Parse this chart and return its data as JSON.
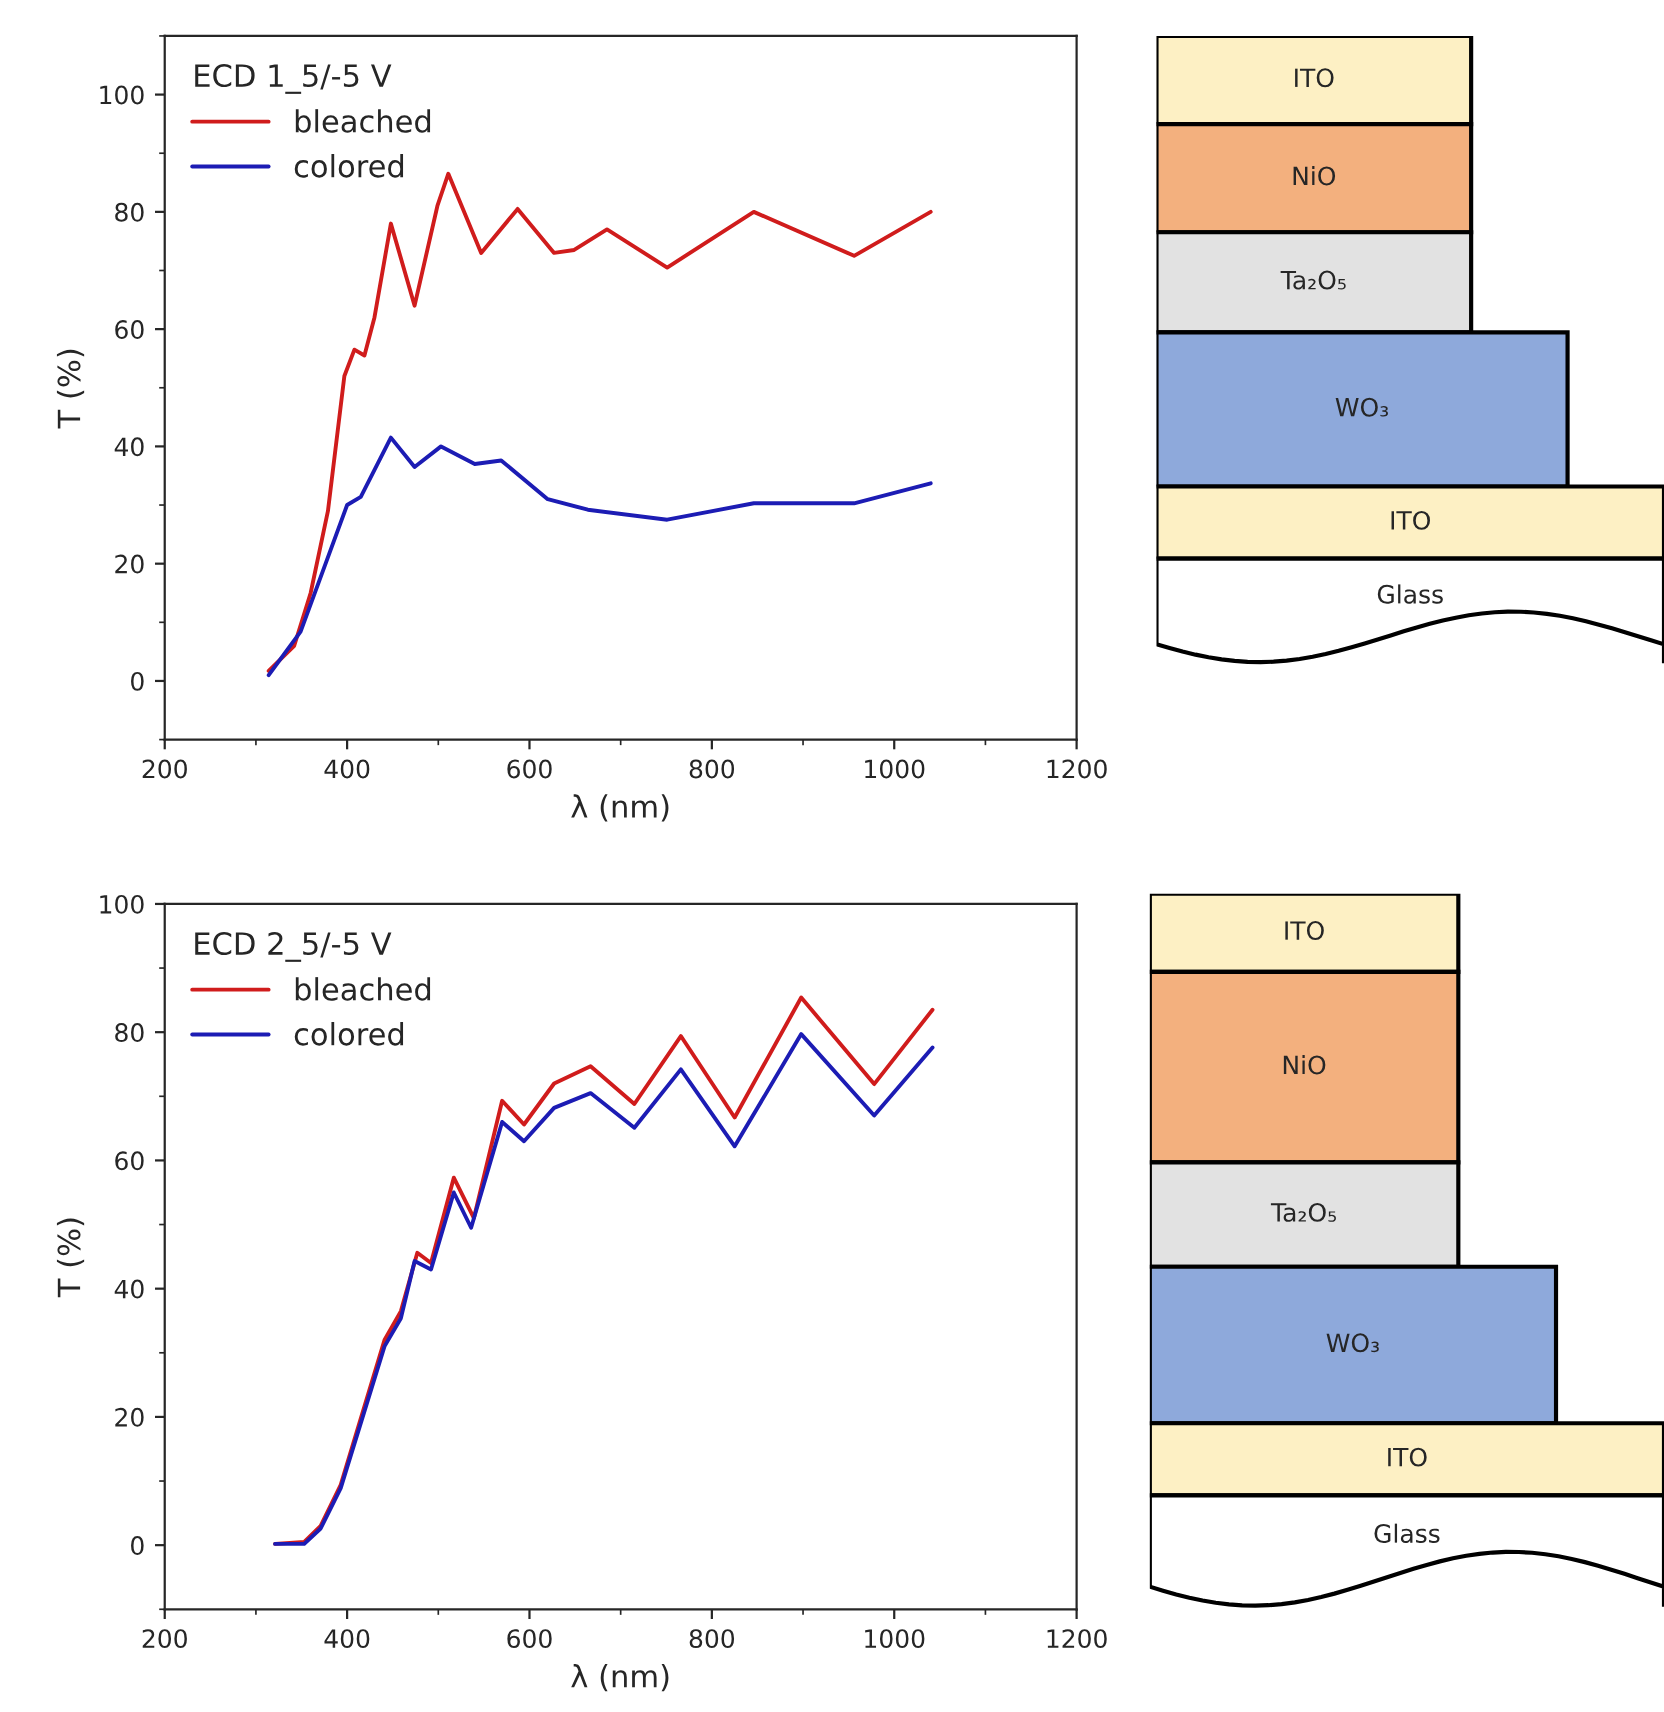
{
  "chart_data": [
    {
      "type": "line",
      "xlabel": "λ (nm)",
      "ylabel": "T (%)",
      "legend_title": "ECD 1_5/-5 V",
      "legend": "top left",
      "grid": false,
      "marker": "none",
      "line_style": "solid",
      "xlim": [
        200,
        1200
      ],
      "xticks": [
        200,
        400,
        600,
        800,
        1000,
        1200
      ],
      "ylim": [
        -10,
        110
      ],
      "yticks": [
        0,
        20,
        40,
        60,
        80,
        100
      ],
      "series": [
        {
          "name": "bleached",
          "color": "#d01c1c",
          "x": [
            314,
            342,
            360,
            379,
            397,
            408,
            419,
            430,
            448,
            474,
            499,
            511,
            547,
            587,
            627,
            649,
            685,
            751,
            846,
            956,
            1040
          ],
          "values": [
            1.7,
            6,
            15,
            29,
            52,
            56.5,
            55.5,
            62,
            78,
            64,
            81,
            86.5,
            73,
            80.5,
            73,
            73.5,
            77,
            70.5,
            80,
            72.5,
            80
          ]
        },
        {
          "name": "colored",
          "color": "#1c1cb4",
          "x": [
            314,
            349,
            400,
            415,
            448,
            474,
            503,
            540,
            569,
            620,
            664,
            751,
            846,
            956,
            1040
          ],
          "values": [
            1,
            8.4,
            30,
            31.4,
            41.5,
            36.5,
            40,
            37,
            37.6,
            31,
            29.2,
            27.5,
            30.3,
            30.3,
            33.7
          ]
        }
      ]
    },
    {
      "type": "other",
      "annotations": [
        "ITO",
        "NiO",
        "Ta₂O₅",
        "WO₃",
        "ITO",
        "Glass"
      ],
      "colors": [
        "#fdf0c4",
        "#f3b07e",
        "#e2e2e2",
        "#8ea9db",
        "#fdf0c4",
        "#ffffff"
      ]
    },
    {
      "type": "line",
      "xlabel": "λ (nm)",
      "ylabel": "T (%)",
      "legend_title": "ECD 2_5/-5 V",
      "legend": "top left",
      "grid": false,
      "marker": "none",
      "line_style": "solid",
      "xlim": [
        200,
        1200
      ],
      "xticks": [
        200,
        400,
        600,
        800,
        1000,
        1200
      ],
      "ylim": [
        -10,
        100
      ],
      "yticks": [
        0,
        20,
        40,
        60,
        80,
        100
      ],
      "series": [
        {
          "name": "bleached",
          "color": "#d01c1c",
          "x": [
            321,
            353,
            371,
            393,
            441,
            459,
            477,
            492,
            517,
            539,
            570,
            594,
            627,
            667,
            715,
            766,
            825,
            898,
            978,
            1042
          ],
          "values": [
            0.2,
            0.5,
            3,
            9.4,
            32,
            36.5,
            45.6,
            44,
            57.3,
            51,
            69.3,
            65.6,
            72,
            74.7,
            68.8,
            79.4,
            66.7,
            85.4,
            71.9,
            83.5
          ]
        },
        {
          "name": "colored",
          "color": "#1c1cb4",
          "x": [
            321,
            353,
            371,
            393,
            441,
            459,
            474,
            492,
            517,
            536,
            570,
            594,
            627,
            667,
            715,
            766,
            825,
            898,
            978,
            1042
          ],
          "values": [
            0.2,
            0.2,
            2.6,
            8.9,
            31,
            35.4,
            44.3,
            43,
            55,
            49.5,
            66,
            63,
            68.2,
            70.5,
            65.1,
            74.2,
            62.2,
            79.7,
            67,
            77.6
          ]
        }
      ]
    },
    {
      "type": "other",
      "annotations": [
        "ITO",
        "NiO",
        "Ta₂O₅",
        "WO₃",
        "ITO",
        "Glass"
      ],
      "colors": [
        "#fdf0c4",
        "#f3b07e",
        "#e2e2e2",
        "#8ea9db",
        "#fdf0c4",
        "#ffffff"
      ]
    }
  ]
}
